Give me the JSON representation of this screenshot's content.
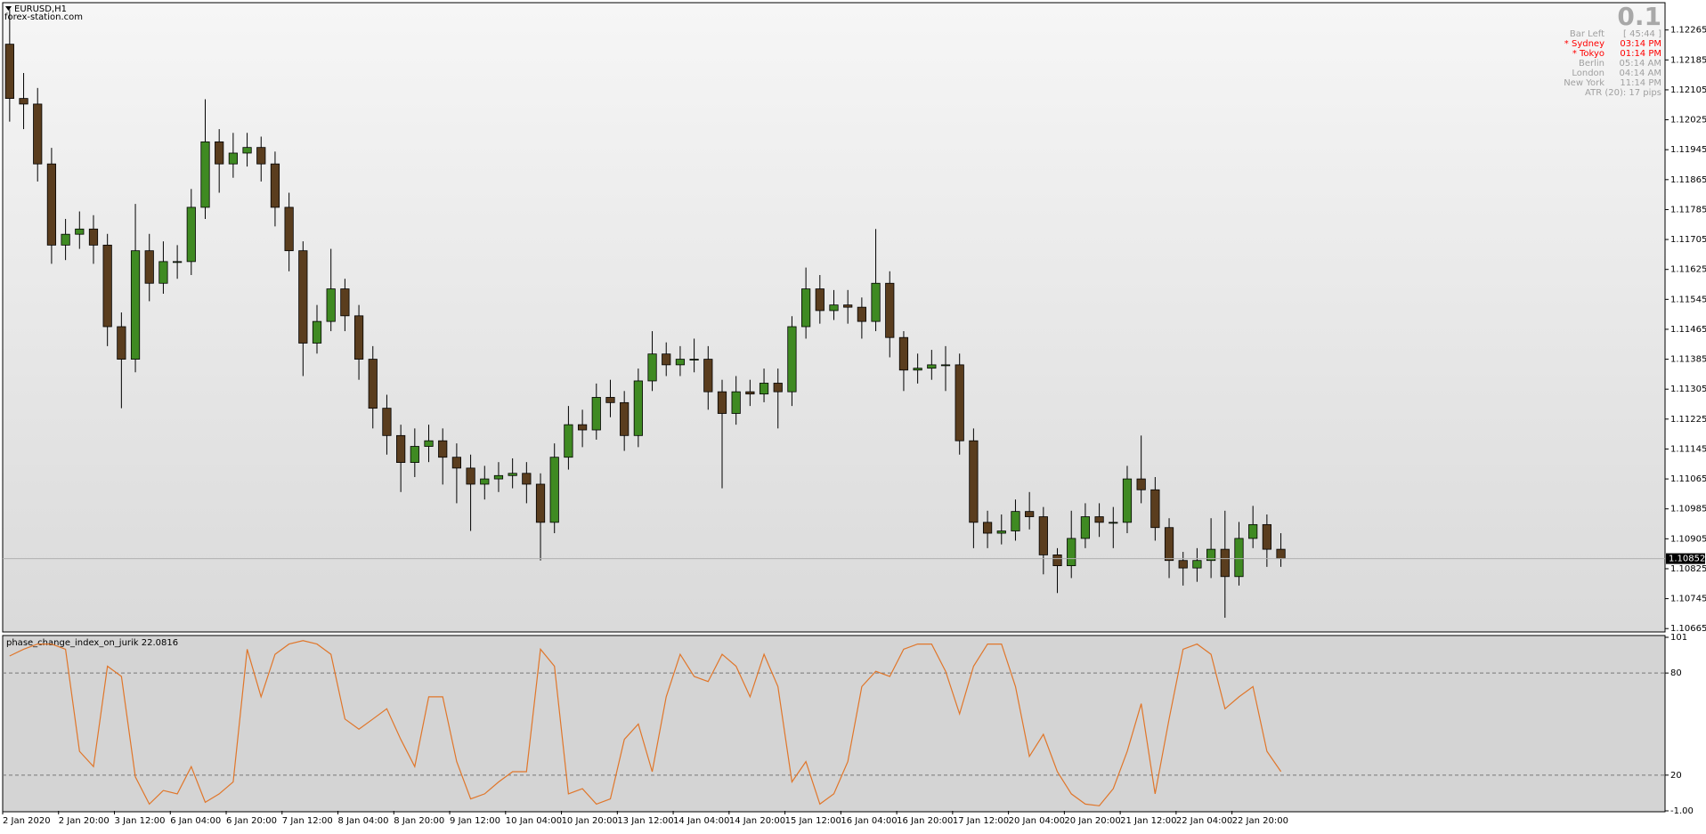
{
  "header": {
    "symbol": "EURUSD,H1",
    "site": "forex-station.com"
  },
  "info_panel": {
    "value": "0.1",
    "rows": [
      {
        "label": "Bar Left",
        "time": "[ 45:44 ]",
        "color": "#a0a0a0"
      },
      {
        "label": "* Sydney",
        "time": "03:14 PM",
        "color": "#ff0000"
      },
      {
        "label": "* Tokyo",
        "time": "01:14 PM",
        "color": "#ff0000"
      },
      {
        "label": "Berlin",
        "time": "05:14 AM",
        "color": "#a0a0a0"
      },
      {
        "label": "London",
        "time": "04:14 AM",
        "color": "#a0a0a0"
      },
      {
        "label": "New York",
        "time": "11:14 PM",
        "color": "#a0a0a0"
      }
    ],
    "atr": "ATR (20): 17 pips"
  },
  "chart_data": [
    {
      "type": "candlestick",
      "up_color": "#3f8a22",
      "down_color": "#5a3d1e",
      "xlim": [
        0,
        119
      ],
      "ylim": [
        1.10656,
        1.12338
      ],
      "yticks": [
        1.12265,
        1.12185,
        1.12105,
        1.12025,
        1.11945,
        1.11865,
        1.11785,
        1.11705,
        1.11625,
        1.11545,
        1.11465,
        1.11385,
        1.11305,
        1.11225,
        1.11145,
        1.11065,
        1.10985,
        1.10905,
        1.10825,
        1.10745,
        1.10665
      ],
      "open": [
        1.12227,
        1.12082,
        1.12067,
        1.11907,
        1.1169,
        1.11719,
        1.11733,
        1.1169,
        1.11472,
        1.11385,
        1.11675,
        1.11588,
        1.11646,
        1.11646,
        1.11791,
        1.11966,
        1.11907,
        1.11936,
        1.11951,
        1.11907,
        1.11791,
        1.11675,
        1.11428,
        1.11486,
        1.11573,
        1.11501,
        1.11385,
        1.11254,
        1.11181,
        1.11109,
        1.11152,
        1.11167,
        1.11123,
        1.11094,
        1.11051,
        1.11065,
        1.11074,
        1.1108,
        1.11051,
        1.10949,
        1.11123,
        1.1121,
        1.11196,
        1.11283,
        1.11269,
        1.11181,
        1.11327,
        1.11399,
        1.1137,
        1.11385,
        1.11385,
        1.11298,
        1.1124,
        1.11298,
        1.11292,
        1.11321,
        1.11298,
        1.11472,
        1.11573,
        1.11515,
        1.1153,
        1.11524,
        1.11486,
        1.11588,
        1.11443,
        1.11356,
        1.11361,
        1.1137,
        1.1137,
        1.11167,
        1.10949,
        1.1092,
        1.10926,
        1.10978,
        1.10964,
        1.10862,
        1.10833,
        1.10906,
        1.10964,
        1.10949,
        1.10949,
        1.11065,
        1.11036,
        1.10935,
        1.10847,
        1.10827,
        1.10847,
        1.10877,
        1.10804,
        1.10906,
        1.10943,
        1.10877
      ],
      "high": [
        1.1232,
        1.1215,
        1.1211,
        1.1195,
        1.1176,
        1.1178,
        1.1177,
        1.1172,
        1.1151,
        1.118,
        1.1172,
        1.117,
        1.1169,
        1.1184,
        1.1208,
        1.12,
        1.1199,
        1.1199,
        1.1198,
        1.1194,
        1.1183,
        1.117,
        1.1153,
        1.1168,
        1.116,
        1.1153,
        1.1142,
        1.1129,
        1.1121,
        1.112,
        1.1121,
        1.112,
        1.1116,
        1.1113,
        1.111,
        1.1111,
        1.1112,
        1.1111,
        1.1108,
        1.1116,
        1.1126,
        1.1125,
        1.1132,
        1.1133,
        1.113,
        1.1136,
        1.1146,
        1.1143,
        1.1142,
        1.1144,
        1.1142,
        1.1133,
        1.1134,
        1.1133,
        1.1136,
        1.1136,
        1.115,
        1.1163,
        1.1161,
        1.1157,
        1.1157,
        1.1155,
        1.11733,
        1.1162,
        1.1146,
        1.114,
        1.1141,
        1.1142,
        1.114,
        1.112,
        1.1098,
        1.1097,
        1.1101,
        1.1103,
        1.1099,
        1.1088,
        1.1098,
        1.11,
        1.11,
        1.1099,
        1.111,
        1.11181,
        1.1107,
        1.1096,
        1.1087,
        1.1088,
        1.1096,
        1.1098,
        1.1095,
        1.10993,
        1.1097,
        1.1092
      ],
      "low": [
        1.1202,
        1.12,
        1.1186,
        1.1164,
        1.1165,
        1.1168,
        1.1164,
        1.1142,
        1.11254,
        1.1135,
        1.1154,
        1.1156,
        1.116,
        1.1161,
        1.1176,
        1.1183,
        1.1187,
        1.119,
        1.1186,
        1.1174,
        1.1162,
        1.1134,
        1.114,
        1.1146,
        1.1146,
        1.1133,
        1.112,
        1.1113,
        1.1103,
        1.1107,
        1.1111,
        1.1105,
        1.11,
        1.10926,
        1.1101,
        1.1103,
        1.1104,
        1.11,
        1.10847,
        1.1092,
        1.1109,
        1.1115,
        1.1117,
        1.1123,
        1.1114,
        1.1115,
        1.113,
        1.1134,
        1.1134,
        1.1135,
        1.1125,
        1.1104,
        1.1121,
        1.1126,
        1.1127,
        1.112,
        1.1126,
        1.1144,
        1.1148,
        1.1149,
        1.1148,
        1.1144,
        1.1146,
        1.1139,
        1.113,
        1.1132,
        1.1133,
        1.113,
        1.1113,
        1.1088,
        1.1088,
        1.1089,
        1.109,
        1.1093,
        1.1081,
        1.1076,
        1.108,
        1.1088,
        1.1091,
        1.1088,
        1.1092,
        1.11,
        1.109,
        1.108,
        1.1078,
        1.1079,
        1.108,
        1.10694,
        1.1078,
        1.1088,
        1.1083,
        1.1083
      ],
      "close": [
        1.12082,
        1.12067,
        1.11907,
        1.1169,
        1.11719,
        1.11733,
        1.1169,
        1.11472,
        1.11385,
        1.11675,
        1.11588,
        1.11646,
        1.11646,
        1.11791,
        1.11966,
        1.11907,
        1.11936,
        1.11951,
        1.11907,
        1.11791,
        1.11675,
        1.11428,
        1.11486,
        1.11573,
        1.11501,
        1.11385,
        1.11254,
        1.11181,
        1.11109,
        1.11152,
        1.11167,
        1.11123,
        1.11094,
        1.11051,
        1.11065,
        1.11074,
        1.1108,
        1.11051,
        1.10949,
        1.11123,
        1.1121,
        1.11196,
        1.11283,
        1.11269,
        1.11181,
        1.11327,
        1.11399,
        1.1137,
        1.11385,
        1.11385,
        1.11298,
        1.1124,
        1.11298,
        1.11292,
        1.11321,
        1.11298,
        1.11472,
        1.11573,
        1.11515,
        1.1153,
        1.11524,
        1.11486,
        1.11588,
        1.11443,
        1.11356,
        1.11361,
        1.1137,
        1.1137,
        1.11167,
        1.10949,
        1.1092,
        1.10926,
        1.10978,
        1.10964,
        1.10862,
        1.10833,
        1.10906,
        1.10964,
        1.10949,
        1.10949,
        1.11065,
        1.11036,
        1.10935,
        1.10847,
        1.10827,
        1.10847,
        1.10877,
        1.10804,
        1.10906,
        1.10943,
        1.10877,
        1.10852
      ]
    },
    {
      "type": "line",
      "name": "phase_change_index_on_jurik",
      "color": "#e0762a",
      "xlim": [
        0,
        119
      ],
      "ylim": [
        -1,
        101
      ],
      "yticks": [
        101,
        80,
        20,
        {
          "value": -1,
          "label": "-1.00"
        }
      ],
      "levels": [
        80,
        20
      ],
      "xticks": [
        {
          "value": 0,
          "label": "2 Jan 2020"
        },
        {
          "value": 4,
          "label": "2 Jan 20:00"
        },
        {
          "value": 8,
          "label": "3 Jan 12:00"
        },
        {
          "value": 12,
          "label": "6 Jan 04:00"
        },
        {
          "value": 16,
          "label": "6 Jan 20:00"
        },
        {
          "value": 20,
          "label": "7 Jan 12:00"
        },
        {
          "value": 24,
          "label": "8 Jan 04:00"
        },
        {
          "value": 28,
          "label": "8 Jan 20:00"
        },
        {
          "value": 32,
          "label": "9 Jan 12:00"
        },
        {
          "value": 36,
          "label": "10 Jan 04:00"
        },
        {
          "value": 40,
          "label": "10 Jan 20:00"
        },
        {
          "value": 44,
          "label": "13 Jan 12:00"
        },
        {
          "value": 48,
          "label": "14 Jan 04:00"
        },
        {
          "value": 52,
          "label": "14 Jan 20:00"
        },
        {
          "value": 56,
          "label": "15 Jan 12:00"
        },
        {
          "value": 60,
          "label": "16 Jan 04:00"
        },
        {
          "value": 64,
          "label": "16 Jan 20:00"
        },
        {
          "value": 68,
          "label": "17 Jan 12:00"
        },
        {
          "value": 72,
          "label": "20 Jan 04:00"
        },
        {
          "value": 76,
          "label": "20 Jan 20:00"
        },
        {
          "value": 80,
          "label": "21 Jan 12:00"
        },
        {
          "value": 84,
          "label": "22 Jan 04:00"
        },
        {
          "value": 88,
          "label": "22 Jan 20:00"
        }
      ],
      "values": [
        90,
        94,
        97,
        97,
        94,
        34,
        25,
        84,
        78,
        19,
        3,
        11,
        9,
        25,
        4,
        9,
        16,
        94,
        66,
        91,
        97,
        99,
        97,
        91,
        53,
        47,
        53,
        59,
        41,
        25,
        66,
        66,
        28,
        6,
        9,
        16,
        22,
        22,
        94,
        84,
        9,
        12,
        3,
        6,
        41,
        50,
        22,
        66,
        91,
        78,
        75,
        91,
        84,
        66,
        91,
        72,
        16,
        28,
        3,
        9,
        28,
        72,
        81,
        78,
        94,
        97,
        97,
        81,
        56,
        84,
        97,
        97,
        72,
        31,
        44,
        22,
        9,
        3,
        2,
        12,
        34,
        62,
        9,
        53,
        94,
        97,
        91,
        59,
        66,
        72,
        34,
        22.0816
      ]
    }
  ]
}
